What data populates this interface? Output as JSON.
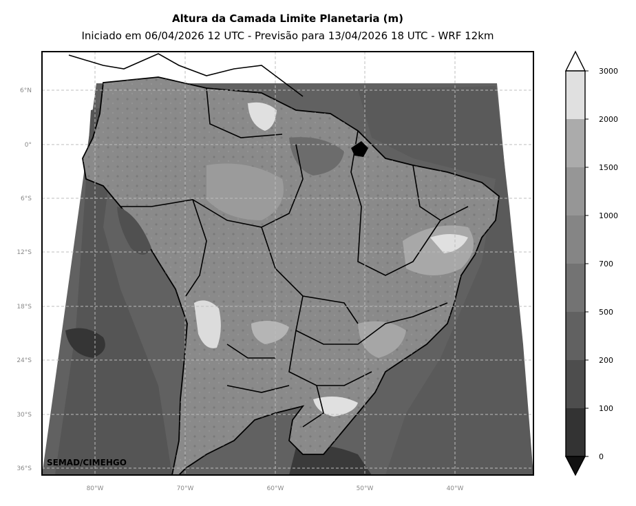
{
  "header": {
    "title": "Altura da Camada Limite Planetaria (m)",
    "subtitle": "Iniciado em 06/04/2026 12 UTC - Previsão para 13/04/2026 18 UTC - WRF 12km"
  },
  "map": {
    "lat_labels": [
      "6°N",
      "0°",
      "6°S",
      "12°S",
      "18°S",
      "24°S",
      "30°S",
      "36°S"
    ],
    "lon_labels": [
      "80°W",
      "70°W",
      "60°W",
      "50°W",
      "40°W"
    ],
    "credit": "SEMAD/CIMEHGO",
    "ocean_color": "#616161",
    "land_color": "#8a8a8a"
  },
  "colorbar": {
    "levels": [
      "0",
      "100",
      "200",
      "500",
      "700",
      "1000",
      "1500",
      "2000",
      "3000"
    ],
    "colors": [
      "#1e1e1e",
      "#333333",
      "#4d4d4d",
      "#616161",
      "#737373",
      "#858585",
      "#969696",
      "#ababab",
      "#e0e0e0"
    ],
    "under_color": "#111111",
    "over_color": "#ffffff"
  }
}
